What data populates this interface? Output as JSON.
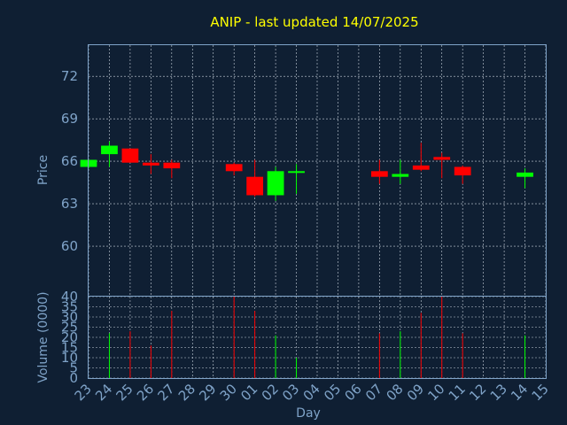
{
  "chart_data": [
    {
      "type": "candlestick",
      "title": "ANIP - last updated 14/07/2025",
      "ylabel": "Price",
      "ylim": [
        56.5,
        74.2
      ],
      "yticks": [
        60,
        63,
        66,
        69,
        72
      ],
      "x": [
        "23",
        "24",
        "25",
        "26",
        "27",
        "28",
        "29",
        "30",
        "01",
        "02",
        "03",
        "04",
        "05",
        "06",
        "07",
        "08",
        "09",
        "10",
        "11",
        "12",
        "13",
        "14",
        "15"
      ],
      "grid": true,
      "up_color": "#00ff00",
      "down_color": "#ff0000",
      "series": [
        {
          "x": "23",
          "open": 65.6,
          "high": 66.1,
          "low": 65.5,
          "close": 66.1
        },
        {
          "x": "24",
          "open": 66.5,
          "high": 67.4,
          "low": 65.6,
          "close": 67.1
        },
        {
          "x": "25",
          "open": 66.9,
          "high": 66.9,
          "low": 65.9,
          "close": 65.9
        },
        {
          "x": "26",
          "open": 65.9,
          "high": 66.5,
          "low": 65.1,
          "close": 65.7
        },
        {
          "x": "27",
          "open": 65.9,
          "high": 66.1,
          "low": 64.8,
          "close": 65.5
        },
        {
          "x": "30",
          "open": 65.8,
          "high": 65.9,
          "low": 65.0,
          "close": 65.3
        },
        {
          "x": "01",
          "open": 64.9,
          "high": 66.1,
          "low": 63.5,
          "close": 63.6
        },
        {
          "x": "02",
          "open": 63.6,
          "high": 65.6,
          "low": 63.2,
          "close": 65.3
        },
        {
          "x": "03",
          "open": 65.2,
          "high": 65.8,
          "low": 63.7,
          "close": 65.3
        },
        {
          "x": "07",
          "open": 65.3,
          "high": 66.1,
          "low": 64.4,
          "close": 64.9
        },
        {
          "x": "08",
          "open": 64.9,
          "high": 66.1,
          "low": 64.4,
          "close": 65.1
        },
        {
          "x": "09",
          "open": 65.7,
          "high": 67.3,
          "low": 65.3,
          "close": 65.4
        },
        {
          "x": "10",
          "open": 66.3,
          "high": 66.6,
          "low": 64.8,
          "close": 66.1
        },
        {
          "x": "11",
          "open": 65.6,
          "high": 65.7,
          "low": 64.4,
          "close": 65.0
        },
        {
          "x": "14",
          "open": 64.9,
          "high": 65.5,
          "low": 64.1,
          "close": 65.2
        }
      ]
    },
    {
      "type": "bar",
      "ylabel": "Volume (0000)",
      "xlabel": "Day",
      "ylim": [
        0,
        40
      ],
      "yticks": [
        0,
        5,
        10,
        15,
        20,
        25,
        30,
        35,
        40
      ],
      "x": [
        "23",
        "24",
        "25",
        "26",
        "27",
        "28",
        "29",
        "30",
        "01",
        "02",
        "03",
        "04",
        "05",
        "06",
        "07",
        "08",
        "09",
        "10",
        "11",
        "12",
        "13",
        "14",
        "15"
      ],
      "series": [
        {
          "x": "24",
          "value": 22,
          "color": "#00ff00"
        },
        {
          "x": "25",
          "value": 23,
          "color": "#ff0000"
        },
        {
          "x": "26",
          "value": 16,
          "color": "#ff0000"
        },
        {
          "x": "27",
          "value": 33,
          "color": "#ff0000"
        },
        {
          "x": "30",
          "value": 40,
          "color": "#ff0000"
        },
        {
          "x": "01",
          "value": 33,
          "color": "#ff0000"
        },
        {
          "x": "02",
          "value": 21,
          "color": "#00ff00"
        },
        {
          "x": "03",
          "value": 10,
          "color": "#00ff00"
        },
        {
          "x": "07",
          "value": 22,
          "color": "#ff0000"
        },
        {
          "x": "08",
          "value": 23,
          "color": "#00ff00"
        },
        {
          "x": "09",
          "value": 32,
          "color": "#ff0000"
        },
        {
          "x": "10",
          "value": 40,
          "color": "#ff0000"
        },
        {
          "x": "11",
          "value": 22,
          "color": "#ff0000"
        },
        {
          "x": "14",
          "value": 21,
          "color": "#00ff00"
        }
      ]
    }
  ]
}
